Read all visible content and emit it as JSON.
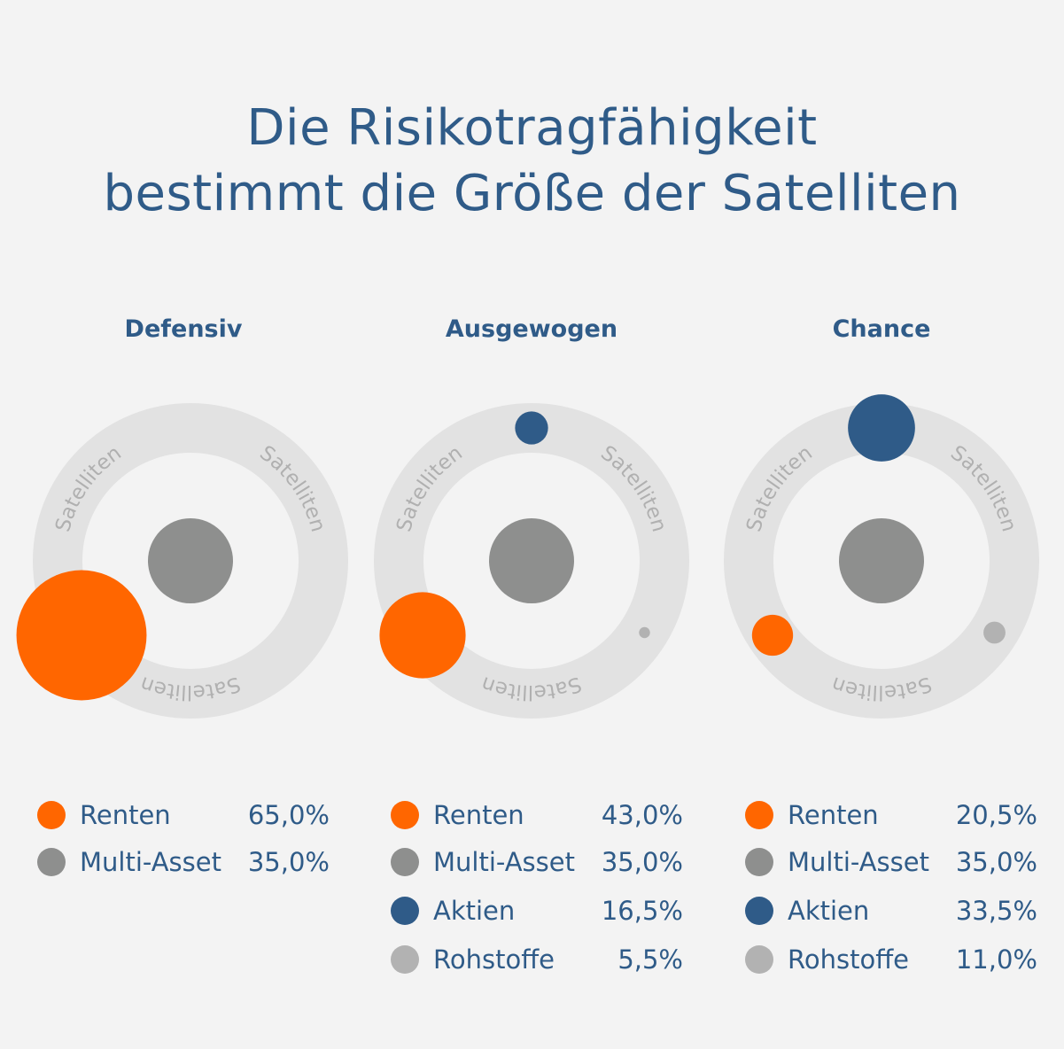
{
  "title_line1": "Die Risikotragfähigkeit",
  "title_line2": "bestimmt die Größe der Satelliten",
  "ring_label": "Satelliten",
  "colors": {
    "Renten": "#ff6600",
    "Multi-Asset": "#8e8f8e",
    "Aktien": "#2f5b88",
    "Rohstoffe": "#b2b2b2",
    "ring": "#e2e2e2",
    "background": "#f3f3f3",
    "text": "#2f5b88"
  },
  "chart_data": [
    {
      "type": "bubble",
      "title": "Defensiv",
      "categories": [
        "Renten",
        "Multi-Asset"
      ],
      "values": [
        65.0,
        35.0
      ],
      "labels": [
        "65,0%",
        "35,0%"
      ]
    },
    {
      "type": "bubble",
      "title": "Ausgewogen",
      "categories": [
        "Renten",
        "Multi-Asset",
        "Aktien",
        "Rohstoffe"
      ],
      "values": [
        43.0,
        35.0,
        16.5,
        5.5
      ],
      "labels": [
        "43,0%",
        "35,0%",
        "16,5%",
        "5,5%"
      ]
    },
    {
      "type": "bubble",
      "title": "Chance",
      "categories": [
        "Renten",
        "Multi-Asset",
        "Aktien",
        "Rohstoffe"
      ],
      "values": [
        20.5,
        35.0,
        33.5,
        11.0
      ],
      "labels": [
        "20,5%",
        "35,0%",
        "33,5%",
        "11,0%"
      ]
    }
  ]
}
